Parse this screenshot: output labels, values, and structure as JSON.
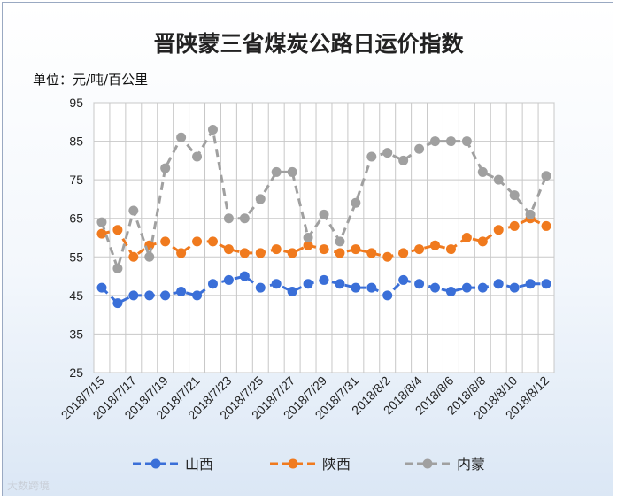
{
  "title": "晋陕蒙三省煤炭公路日运价指数",
  "unit_label": "单位：元/吨/百公里",
  "watermark": "大数跨境",
  "chart_data": {
    "type": "line",
    "title": "晋陕蒙三省煤炭公路日运价指数",
    "ylabel": "单位：元/吨/百公里",
    "ylim": [
      25,
      95
    ],
    "yticks": [
      25,
      35,
      45,
      55,
      65,
      75,
      85,
      95
    ],
    "x": [
      "2018/7/15",
      "2018/7/16",
      "2018/7/17",
      "2018/7/18",
      "2018/7/19",
      "2018/7/20",
      "2018/7/21",
      "2018/7/22",
      "2018/7/23",
      "2018/7/24",
      "2018/7/25",
      "2018/7/26",
      "2018/7/27",
      "2018/7/28",
      "2018/7/29",
      "2018/7/30",
      "2018/7/31",
      "2018/8/1",
      "2018/8/2",
      "2018/8/3",
      "2018/8/4",
      "2018/8/5",
      "2018/8/6",
      "2018/8/7",
      "2018/8/8",
      "2018/8/9",
      "2018/8/10",
      "2018/8/11",
      "2018/8/12"
    ],
    "xtick_labels": [
      "2018/7/15",
      "2018/7/17",
      "2018/7/19",
      "2018/7/21",
      "2018/7/23",
      "2018/7/25",
      "2018/7/27",
      "2018/7/29",
      "2018/7/31",
      "2018/8/2",
      "2018/8/4",
      "2018/8/6",
      "2018/8/8",
      "2018/8/10",
      "2018/8/12"
    ],
    "grid": true,
    "legend_position": "bottom",
    "series": [
      {
        "name": "山西",
        "color": "#3a6fd8",
        "values": [
          47,
          43,
          45,
          45,
          45,
          46,
          45,
          48,
          49,
          50,
          47,
          48,
          46,
          48,
          49,
          48,
          47,
          47,
          45,
          49,
          48,
          47,
          46,
          47,
          47,
          48,
          47,
          48,
          48
        ]
      },
      {
        "name": "陕西",
        "color": "#f07a1e",
        "values": [
          61,
          62,
          55,
          58,
          59,
          56,
          59,
          59,
          57,
          56,
          56,
          57,
          56,
          58,
          57,
          56,
          57,
          56,
          55,
          56,
          57,
          58,
          57,
          60,
          59,
          62,
          63,
          65,
          63
        ]
      },
      {
        "name": "内蒙",
        "color": "#a0a0a0",
        "values": [
          64,
          52,
          67,
          55,
          78,
          86,
          81,
          88,
          65,
          65,
          70,
          77,
          77,
          60,
          66,
          59,
          69,
          81,
          82,
          80,
          83,
          85,
          85,
          85,
          77,
          75,
          71,
          66,
          76
        ]
      }
    ]
  }
}
